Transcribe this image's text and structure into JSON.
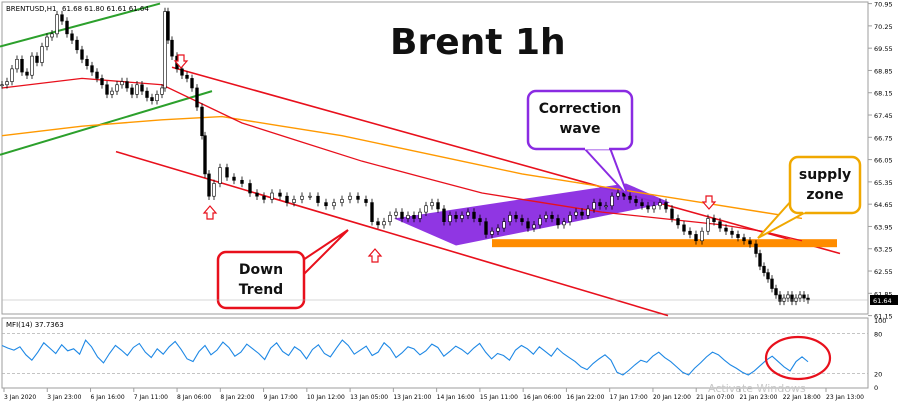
{
  "chart_data": [
    {
      "type": "candlestick",
      "symbol_header": "BRENTUSD,H1",
      "ohlc_header": "61.68 61.80 61.61 61.64",
      "title": "Brent  1h",
      "ylim": [
        61.2,
        71.0
      ],
      "y_ticks": [
        "70.95",
        "70.25",
        "69.55",
        "68.85",
        "68.15",
        "67.45",
        "66.75",
        "66.05",
        "65.35",
        "64.65",
        "63.95",
        "63.25",
        "62.55",
        "61.85",
        "61.15"
      ],
      "last_price": "61.64",
      "x_ticks": [
        "3 Jan 2020",
        "3 Jan 23:00",
        "6 Jan 16:00",
        "7 Jan 11:00",
        "8 Jan 06:00",
        "8 Jan 22:00",
        "9 Jan 17:00",
        "10 Jan 12:00",
        "13 Jan 05:00",
        "13 Jan 21:00",
        "14 Jan 16:00",
        "15 Jan 11:00",
        "16 Jan 06:00",
        "16 Jan 22:00",
        "17 Jan 17:00",
        "20 Jan 12:00",
        "21 Jan 07:00",
        "21 Jan 23:00",
        "22 Jan 18:00",
        "23 Jan 13:00"
      ],
      "annotations": {
        "down_trend": "Down\nTrend",
        "correction_wave": "Correction\nwave",
        "supply_zone": "supply\nzone"
      },
      "colors": {
        "bull": "#000000",
        "bear": "#000000",
        "channel_lines": "#e8101c",
        "upper_channel": "#2ca02c",
        "ma_fast": "#e8101c",
        "ma_slow": "#ff9900",
        "correction_band": "#8a2be2",
        "supply_zone": "#ff8c00",
        "arrows": "#e8101c",
        "mfi_line": "#1e88e5"
      },
      "series": [
        {
          "name": "BRENTUSD,H1",
          "points": [
            [
              0,
              68.4
            ],
            [
              5,
              68.5
            ],
            [
              10,
              68.9
            ],
            [
              15,
              69.2
            ],
            [
              20,
              68.8
            ],
            [
              25,
              68.7
            ],
            [
              30,
              69.3
            ],
            [
              35,
              69.1
            ],
            [
              40,
              69.6
            ],
            [
              45,
              69.9
            ],
            [
              50,
              70.0
            ],
            [
              55,
              70.6
            ],
            [
              60,
              70.4
            ],
            [
              65,
              70.0
            ],
            [
              70,
              69.8
            ],
            [
              75,
              69.5
            ],
            [
              80,
              69.2
            ],
            [
              85,
              69.0
            ],
            [
              90,
              68.8
            ],
            [
              95,
              68.6
            ],
            [
              100,
              68.4
            ],
            [
              105,
              68.1
            ],
            [
              110,
              68.2
            ],
            [
              115,
              68.4
            ],
            [
              120,
              68.5
            ],
            [
              125,
              68.3
            ],
            [
              130,
              68.1
            ],
            [
              135,
              68.4
            ],
            [
              140,
              68.2
            ],
            [
              145,
              68.0
            ],
            [
              150,
              67.9
            ],
            [
              155,
              68.1
            ],
            [
              160,
              68.3
            ],
            [
              163,
              70.7
            ],
            [
              166,
              69.8
            ],
            [
              170,
              69.3
            ],
            [
              175,
              68.9
            ],
            [
              180,
              68.7
            ],
            [
              185,
              68.6
            ],
            [
              190,
              68.3
            ],
            [
              195,
              67.7
            ],
            [
              200,
              66.8
            ],
            [
              203,
              65.6
            ],
            [
              207,
              64.9
            ],
            [
              212,
              65.3
            ],
            [
              218,
              65.8
            ],
            [
              225,
              65.5
            ],
            [
              232,
              65.4
            ],
            [
              240,
              65.3
            ],
            [
              248,
              65.0
            ],
            [
              255,
              64.9
            ],
            [
              262,
              64.8
            ],
            [
              270,
              65.0
            ],
            [
              278,
              64.9
            ],
            [
              285,
              64.7
            ],
            [
              292,
              64.8
            ],
            [
              300,
              64.9
            ],
            [
              308,
              64.9
            ],
            [
              316,
              64.7
            ],
            [
              324,
              64.6
            ],
            [
              332,
              64.7
            ],
            [
              340,
              64.8
            ],
            [
              348,
              64.9
            ],
            [
              356,
              64.8
            ],
            [
              364,
              64.7
            ],
            [
              370,
              64.1
            ],
            [
              376,
              64.0
            ],
            [
              382,
              64.1
            ],
            [
              388,
              64.3
            ],
            [
              394,
              64.4
            ],
            [
              400,
              64.2
            ],
            [
              406,
              64.3
            ],
            [
              412,
              64.2
            ],
            [
              418,
              64.4
            ],
            [
              424,
              64.6
            ],
            [
              430,
              64.7
            ],
            [
              436,
              64.5
            ],
            [
              442,
              64.1
            ],
            [
              448,
              64.3
            ],
            [
              454,
              64.2
            ],
            [
              460,
              64.3
            ],
            [
              466,
              64.4
            ],
            [
              472,
              64.2
            ],
            [
              478,
              64.1
            ],
            [
              484,
              63.7
            ],
            [
              490,
              63.8
            ],
            [
              496,
              63.9
            ],
            [
              502,
              64.1
            ],
            [
              508,
              64.3
            ],
            [
              514,
              64.2
            ],
            [
              520,
              64.1
            ],
            [
              526,
              63.9
            ],
            [
              532,
              64.0
            ],
            [
              538,
              64.2
            ],
            [
              544,
              64.3
            ],
            [
              550,
              64.2
            ],
            [
              556,
              64.0
            ],
            [
              562,
              64.1
            ],
            [
              568,
              64.3
            ],
            [
              574,
              64.4
            ],
            [
              580,
              64.3
            ],
            [
              586,
              64.5
            ],
            [
              592,
              64.7
            ],
            [
              598,
              64.6
            ],
            [
              604,
              64.6
            ],
            [
              610,
              64.9
            ],
            [
              616,
              65.0
            ],
            [
              622,
              64.9
            ],
            [
              628,
              64.8
            ],
            [
              634,
              64.7
            ],
            [
              640,
              64.6
            ],
            [
              646,
              64.5
            ],
            [
              652,
              64.6
            ],
            [
              658,
              64.7
            ],
            [
              664,
              64.5
            ],
            [
              670,
              64.2
            ],
            [
              676,
              64.0
            ],
            [
              682,
              63.8
            ],
            [
              688,
              63.7
            ],
            [
              694,
              63.5
            ],
            [
              700,
              63.8
            ],
            [
              706,
              64.2
            ],
            [
              712,
              64.1
            ],
            [
              718,
              63.9
            ],
            [
              724,
              63.8
            ],
            [
              730,
              63.7
            ],
            [
              736,
              63.6
            ],
            [
              742,
              63.5
            ],
            [
              748,
              63.4
            ],
            [
              754,
              63.1
            ],
            [
              758,
              62.7
            ],
            [
              762,
              62.5
            ],
            [
              766,
              62.3
            ],
            [
              770,
              62.0
            ],
            [
              774,
              61.8
            ],
            [
              778,
              61.6
            ],
            [
              782,
              61.7
            ],
            [
              786,
              61.8
            ],
            [
              790,
              61.6
            ],
            [
              794,
              61.7
            ],
            [
              798,
              61.8
            ],
            [
              802,
              61.7
            ],
            [
              806,
              61.64
            ]
          ]
        }
      ],
      "indicator": {
        "label": "MFI(14) 37.7363",
        "ylim": [
          0,
          100
        ],
        "levels": [
          80,
          20
        ],
        "y_ticks": [
          "100",
          "80",
          "20",
          "0"
        ],
        "values": [
          62,
          58,
          55,
          60,
          48,
          40,
          52,
          66,
          58,
          50,
          63,
          54,
          57,
          49,
          70,
          60,
          45,
          36,
          50,
          62,
          55,
          47,
          59,
          65,
          52,
          44,
          57,
          49,
          60,
          68,
          56,
          42,
          38,
          53,
          62,
          48,
          55,
          67,
          59,
          46,
          52,
          64,
          57,
          50,
          41,
          58,
          66,
          53,
          47,
          60,
          54,
          42,
          56,
          63,
          50,
          45,
          58,
          70,
          62,
          49,
          55,
          61,
          47,
          52,
          66,
          58,
          44,
          51,
          60,
          57,
          48,
          54,
          64,
          59,
          46,
          53,
          61,
          56,
          49,
          58,
          65,
          52,
          42,
          50,
          47,
          40,
          55,
          62,
          57,
          49,
          60,
          53,
          46,
          58,
          50,
          44,
          38,
          30,
          26,
          35,
          42,
          48,
          40,
          22,
          18,
          25,
          33,
          40,
          37,
          46,
          52,
          44,
          38,
          30,
          22,
          18,
          28,
          36,
          45,
          52,
          48,
          40,
          33,
          28,
          22,
          18,
          24,
          32,
          40,
          46,
          38,
          30,
          24,
          38,
          45,
          37.7
        ]
      }
    }
  ],
  "watermark": "Activate Windows"
}
